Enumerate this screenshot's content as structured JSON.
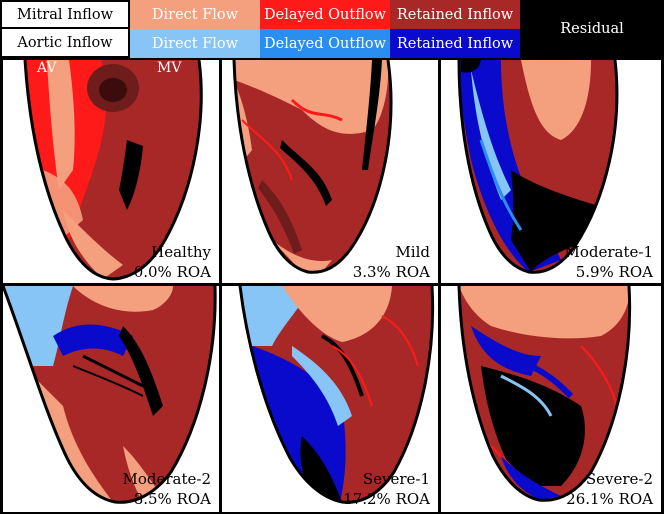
{
  "legend": {
    "mitral_label": "Mitral Inflow",
    "aortic_label": "Aortic Inflow",
    "mitral": [
      {
        "label": "Direct Flow",
        "color": "#f4a07e"
      },
      {
        "label": "Delayed Outflow",
        "color": "#ff1a1a"
      },
      {
        "label": "Retained Inflow",
        "color": "#a82828"
      }
    ],
    "aortic": [
      {
        "label": "Direct Flow",
        "color": "#86c5f5"
      },
      {
        "label": "Delayed Outflow",
        "color": "#2a8df0"
      },
      {
        "label": "Retained Inflow",
        "color": "#0a0acc"
      }
    ],
    "residual": {
      "label": "Residual",
      "color": "#000000"
    }
  },
  "annotations": {
    "av": "AV",
    "mv": "MV"
  },
  "panels": [
    {
      "name": "Healthy",
      "roa": "0.0% ROA"
    },
    {
      "name": "Mild",
      "roa": "3.3% ROA"
    },
    {
      "name": "Moderate-1",
      "roa": "5.9% ROA"
    },
    {
      "name": "Moderate-2",
      "roa": "8.5% ROA"
    },
    {
      "name": "Severe-1",
      "roa": "17.2% ROA"
    },
    {
      "name": "Severe-2",
      "roa": "26.1% ROA"
    }
  ]
}
